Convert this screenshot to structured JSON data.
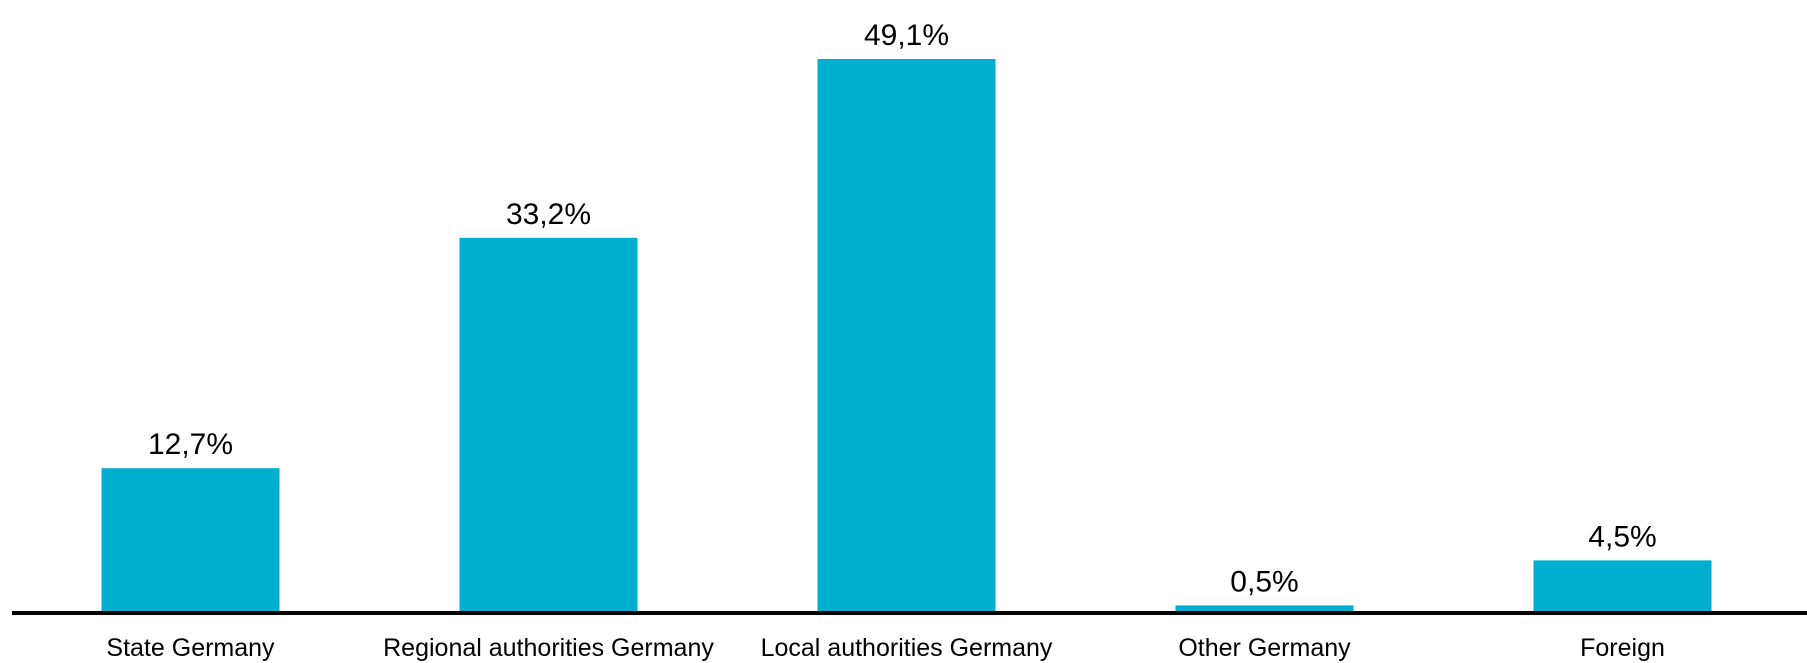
{
  "chart_data": {
    "type": "bar",
    "title": "",
    "xlabel": "",
    "ylabel": "",
    "categories": [
      "State Germany",
      "Regional authorities Germany",
      "Local authorities Germany",
      "Other Germany",
      "Foreign"
    ],
    "values": [
      12.7,
      33.2,
      49.1,
      0.5,
      4.5
    ],
    "value_labels": [
      "12,7%",
      "33,2%",
      "49,1%",
      "0,5%",
      "4,5%"
    ],
    "unit": "%",
    "ylim": [
      0,
      49.1
    ],
    "grid": false,
    "legend": "none",
    "bar_color": "#00AECF",
    "axis_color": "#000000"
  }
}
